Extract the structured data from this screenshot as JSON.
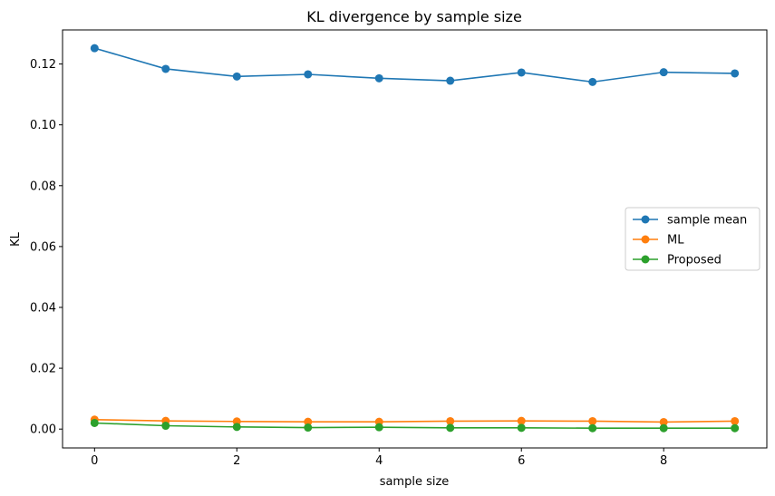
{
  "chart_data": {
    "type": "line",
    "title": "KL divergence by sample size",
    "xlabel": "sample size",
    "ylabel": "KL",
    "xlim": [
      -0.45,
      9.45
    ],
    "ylim": [
      -0.0062,
      0.1312
    ],
    "x": [
      0,
      1,
      2,
      3,
      4,
      5,
      6,
      7,
      8,
      9
    ],
    "xticks": [
      0,
      2,
      4,
      6,
      8
    ],
    "yticks": [
      0.0,
      0.02,
      0.04,
      0.06,
      0.08,
      0.1,
      0.12
    ],
    "ytick_labels": [
      "0.00",
      "0.02",
      "0.04",
      "0.06",
      "0.08",
      "0.10",
      "0.12"
    ],
    "grid": false,
    "legend_position": "center-right",
    "series": [
      {
        "name": "sample mean",
        "color": "#1f77b4",
        "marker": "circle",
        "values": [
          0.1252,
          0.1184,
          0.1159,
          0.1166,
          0.1153,
          0.1145,
          0.1172,
          0.1141,
          0.1173,
          0.1169
        ]
      },
      {
        "name": "ML",
        "color": "#ff7f0e",
        "marker": "circle",
        "values": [
          0.0031,
          0.0027,
          0.0025,
          0.0024,
          0.0024,
          0.0026,
          0.0027,
          0.0026,
          0.0023,
          0.0026
        ]
      },
      {
        "name": "Proposed",
        "color": "#2ca02c",
        "marker": "circle",
        "values": [
          0.002,
          0.0011,
          0.0007,
          0.0005,
          0.0006,
          0.0004,
          0.0004,
          0.0003,
          0.0003,
          0.0003
        ]
      }
    ]
  }
}
